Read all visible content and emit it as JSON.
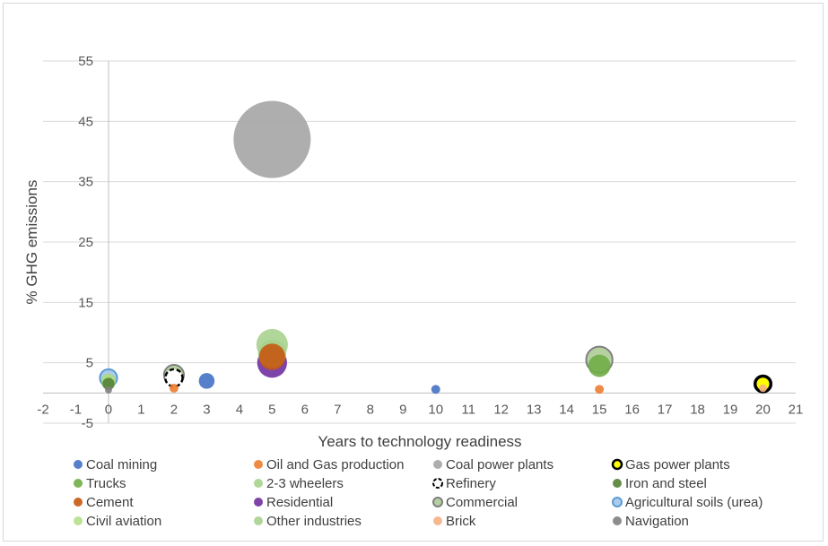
{
  "chart_data": {
    "type": "scatter",
    "title": "",
    "xlabel": "Years to technology readiness",
    "ylabel": "% GHG emissions",
    "xlim": [
      -2,
      21
    ],
    "ylim": [
      -5,
      55
    ],
    "xticks": [
      -2,
      -1,
      0,
      1,
      2,
      3,
      4,
      5,
      6,
      7,
      8,
      9,
      10,
      11,
      12,
      13,
      14,
      15,
      16,
      17,
      18,
      19,
      20,
      21
    ],
    "yticks": [
      -5,
      5,
      15,
      25,
      35,
      45,
      55
    ],
    "grid": "horizontal",
    "legend_position": "bottom",
    "bubble_size_note": "bubble size proportional to marker area",
    "series": [
      {
        "name": "Coal mining",
        "color": "#4472c4",
        "style": "filled",
        "points": [
          {
            "x": 3,
            "y": 2,
            "size": 2.5
          },
          {
            "x": 10,
            "y": 0.6,
            "size": 0.8
          }
        ]
      },
      {
        "name": "Oil and Gas production",
        "color": "#ed7d31",
        "style": "filled",
        "points": [
          {
            "x": 2,
            "y": 0.8,
            "size": 0.8
          },
          {
            "x": 15,
            "y": 0.6,
            "size": 0.8
          }
        ]
      },
      {
        "name": "Coal power plants",
        "color": "#a5a5a5",
        "style": "filled",
        "points": [
          {
            "x": 5,
            "y": 42,
            "size": 60
          }
        ]
      },
      {
        "name": "Gas power plants",
        "color": "#ffff00",
        "style": "ringed-black",
        "points": [
          {
            "x": 20,
            "y": 1.5,
            "size": 2.5
          }
        ]
      },
      {
        "name": "Trucks",
        "color": "#70ad47",
        "style": "filled",
        "points": [
          {
            "x": 15,
            "y": 4.5,
            "size": 5
          },
          {
            "x": 0,
            "y": 2,
            "size": 2
          }
        ]
      },
      {
        "name": "2-3 wheelers",
        "color": "#a9d18e",
        "style": "filled",
        "points": [
          {
            "x": 5,
            "y": 8,
            "size": 10
          }
        ]
      },
      {
        "name": "Refinery",
        "color": "#ffffff",
        "style": "ringed-dashed",
        "points": [
          {
            "x": 2,
            "y": 2.5,
            "size": 3
          }
        ]
      },
      {
        "name": "Iron and steel",
        "color": "#548235",
        "style": "filled",
        "points": [
          {
            "x": 0,
            "y": 1.5,
            "size": 1.5
          }
        ]
      },
      {
        "name": "Cement",
        "color": "#c55a11",
        "style": "filled",
        "points": [
          {
            "x": 5,
            "y": 6,
            "size": 7
          }
        ]
      },
      {
        "name": "Residential",
        "color": "#7030a0",
        "style": "filled",
        "points": [
          {
            "x": 5,
            "y": 5,
            "size": 9
          }
        ]
      },
      {
        "name": "Commercial",
        "color": "#a9c98f",
        "style": "ringed-grey",
        "points": [
          {
            "x": 2,
            "y": 3,
            "size": 4
          },
          {
            "x": 15,
            "y": 5.5,
            "size": 7
          }
        ]
      },
      {
        "name": "Agricultural soils (urea)",
        "color": "#9dc3e6",
        "style": "ringed-blue",
        "points": [
          {
            "x": 0,
            "y": 2.5,
            "size": 3
          }
        ]
      },
      {
        "name": "Civil aviation",
        "color": "#b4e08c",
        "style": "filled",
        "points": [
          {
            "x": 0,
            "y": 2,
            "size": 2
          }
        ]
      },
      {
        "name": "Other industries",
        "color": "#a9d18e",
        "style": "filled",
        "points": [
          {
            "x": 5,
            "y": 6.5,
            "size": 8
          }
        ]
      },
      {
        "name": "Brick",
        "color": "#f4b183",
        "style": "filled",
        "points": [
          {
            "x": 20,
            "y": 0.8,
            "size": 0.6
          }
        ]
      },
      {
        "name": "Navigation",
        "color": "#7f7f7f",
        "style": "filled",
        "points": [
          {
            "x": 0,
            "y": 0.5,
            "size": 0.5
          }
        ]
      }
    ]
  }
}
